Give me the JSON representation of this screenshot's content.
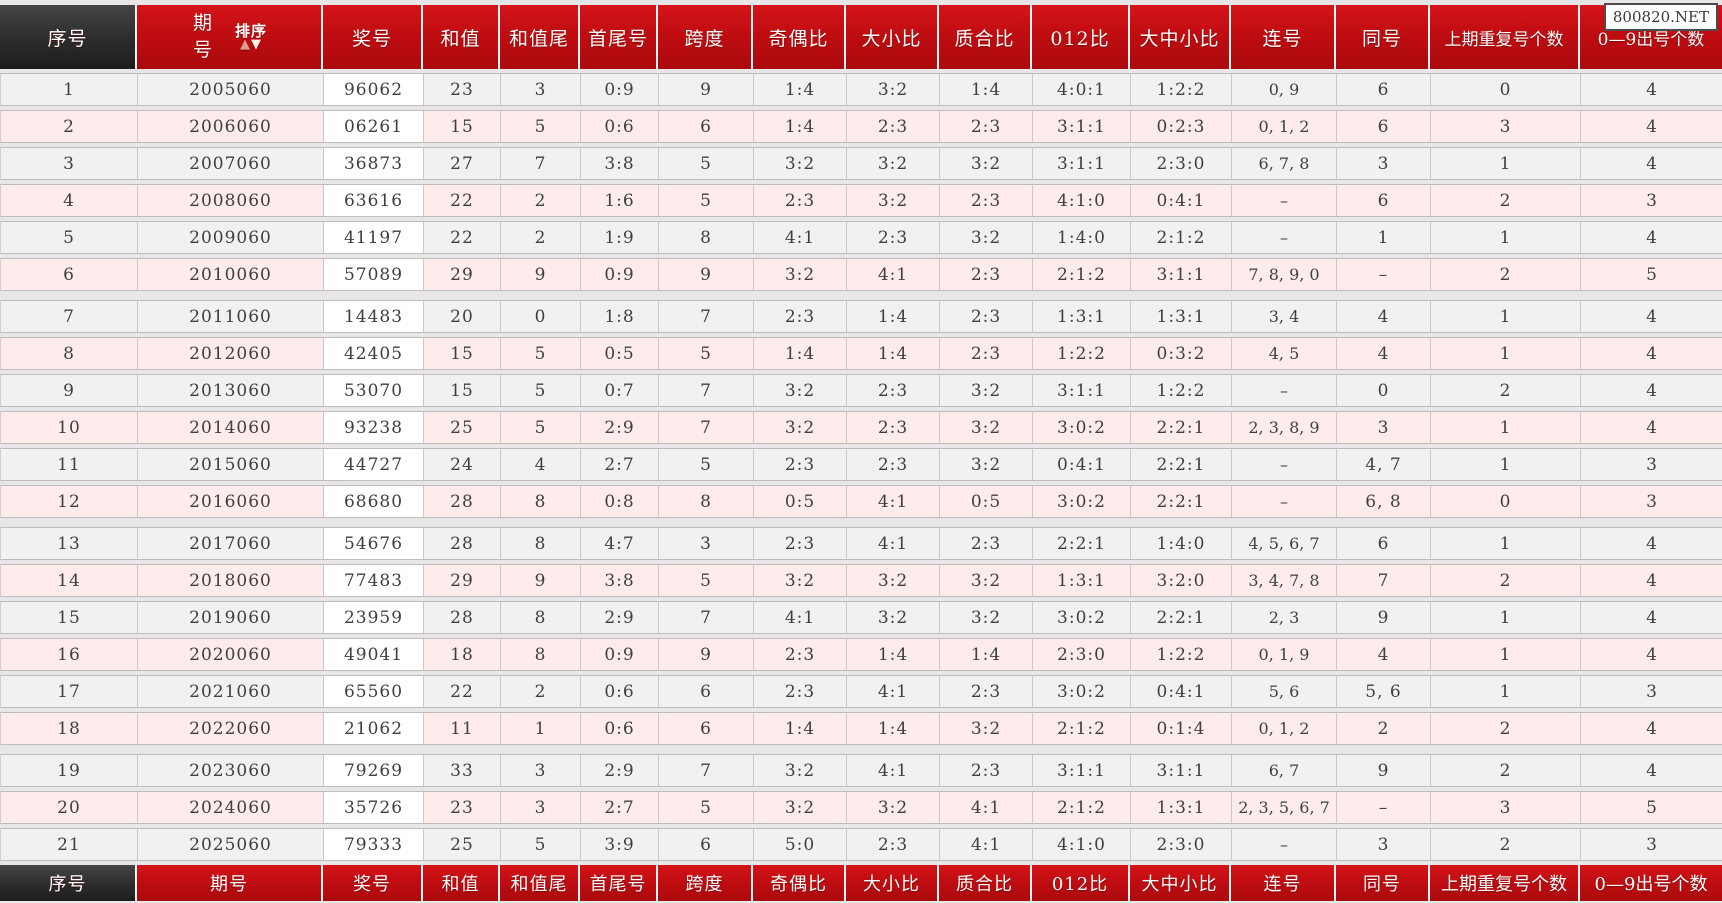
{
  "watermark": {
    "text": "800820.NET"
  },
  "sort": {
    "label": "排序",
    "up_icon": "▲",
    "down_icon": "▼"
  },
  "table": {
    "columns": [
      {
        "key": "serial",
        "label": "序号"
      },
      {
        "key": "period",
        "label": "期号"
      },
      {
        "key": "prize",
        "label": "奖号"
      },
      {
        "key": "sum",
        "label": "和值"
      },
      {
        "key": "sum_tail",
        "label": "和值尾"
      },
      {
        "key": "first_last",
        "label": "首尾号"
      },
      {
        "key": "span",
        "label": "跨度"
      },
      {
        "key": "odd_even",
        "label": "奇偶比"
      },
      {
        "key": "big_small",
        "label": "大小比"
      },
      {
        "key": "prime_composite",
        "label": "质合比"
      },
      {
        "key": "ratio_012",
        "label": "012比"
      },
      {
        "key": "big_mid_small",
        "label": "大中小比"
      },
      {
        "key": "consecutive",
        "label": "连号"
      },
      {
        "key": "same",
        "label": "同号"
      },
      {
        "key": "repeat_prev",
        "label": "上期重复号个数"
      },
      {
        "key": "digit_count",
        "label": "0—9出号个数"
      }
    ],
    "group_size": 6,
    "rows": [
      [
        "1",
        "2005060",
        "96062",
        "23",
        "3",
        "0:9",
        "9",
        "1:4",
        "3:2",
        "1:4",
        "4:0:1",
        "1:2:2",
        "0, 9",
        "6",
        "0",
        "4"
      ],
      [
        "2",
        "2006060",
        "06261",
        "15",
        "5",
        "0:6",
        "6",
        "1:4",
        "2:3",
        "2:3",
        "3:1:1",
        "0:2:3",
        "0, 1, 2",
        "6",
        "3",
        "4"
      ],
      [
        "3",
        "2007060",
        "36873",
        "27",
        "7",
        "3:8",
        "5",
        "3:2",
        "3:2",
        "3:2",
        "3:1:1",
        "2:3:0",
        "6, 7, 8",
        "3",
        "1",
        "4"
      ],
      [
        "4",
        "2008060",
        "63616",
        "22",
        "2",
        "1:6",
        "5",
        "2:3",
        "3:2",
        "2:3",
        "4:1:0",
        "0:4:1",
        "–",
        "6",
        "2",
        "3"
      ],
      [
        "5",
        "2009060",
        "41197",
        "22",
        "2",
        "1:9",
        "8",
        "4:1",
        "2:3",
        "3:2",
        "1:4:0",
        "2:1:2",
        "–",
        "1",
        "1",
        "4"
      ],
      [
        "6",
        "2010060",
        "57089",
        "29",
        "9",
        "0:9",
        "9",
        "3:2",
        "4:1",
        "2:3",
        "2:1:2",
        "3:1:1",
        "7, 8, 9, 0",
        "–",
        "2",
        "5"
      ],
      [
        "7",
        "2011060",
        "14483",
        "20",
        "0",
        "1:8",
        "7",
        "2:3",
        "1:4",
        "2:3",
        "1:3:1",
        "1:3:1",
        "3, 4",
        "4",
        "1",
        "4"
      ],
      [
        "8",
        "2012060",
        "42405",
        "15",
        "5",
        "0:5",
        "5",
        "1:4",
        "1:4",
        "2:3",
        "1:2:2",
        "0:3:2",
        "4, 5",
        "4",
        "1",
        "4"
      ],
      [
        "9",
        "2013060",
        "53070",
        "15",
        "5",
        "0:7",
        "7",
        "3:2",
        "2:3",
        "3:2",
        "3:1:1",
        "1:2:2",
        "–",
        "0",
        "2",
        "4"
      ],
      [
        "10",
        "2014060",
        "93238",
        "25",
        "5",
        "2:9",
        "7",
        "3:2",
        "2:3",
        "3:2",
        "3:0:2",
        "2:2:1",
        "2, 3, 8, 9",
        "3",
        "1",
        "4"
      ],
      [
        "11",
        "2015060",
        "44727",
        "24",
        "4",
        "2:7",
        "5",
        "2:3",
        "2:3",
        "3:2",
        "0:4:1",
        "2:2:1",
        "–",
        "4, 7",
        "1",
        "3"
      ],
      [
        "12",
        "2016060",
        "68680",
        "28",
        "8",
        "0:8",
        "8",
        "0:5",
        "4:1",
        "0:5",
        "3:0:2",
        "2:2:1",
        "–",
        "6, 8",
        "0",
        "3"
      ],
      [
        "13",
        "2017060",
        "54676",
        "28",
        "8",
        "4:7",
        "3",
        "2:3",
        "4:1",
        "2:3",
        "2:2:1",
        "1:4:0",
        "4, 5, 6, 7",
        "6",
        "1",
        "4"
      ],
      [
        "14",
        "2018060",
        "77483",
        "29",
        "9",
        "3:8",
        "5",
        "3:2",
        "3:2",
        "3:2",
        "1:3:1",
        "3:2:0",
        "3, 4, 7, 8",
        "7",
        "2",
        "4"
      ],
      [
        "15",
        "2019060",
        "23959",
        "28",
        "8",
        "2:9",
        "7",
        "4:1",
        "3:2",
        "3:2",
        "3:0:2",
        "2:2:1",
        "2, 3",
        "9",
        "1",
        "4"
      ],
      [
        "16",
        "2020060",
        "49041",
        "18",
        "8",
        "0:9",
        "9",
        "2:3",
        "1:4",
        "1:4",
        "2:3:0",
        "1:2:2",
        "0, 1, 9",
        "4",
        "1",
        "4"
      ],
      [
        "17",
        "2021060",
        "65560",
        "22",
        "2",
        "0:6",
        "6",
        "2:3",
        "4:1",
        "2:3",
        "3:0:2",
        "0:4:1",
        "5, 6",
        "5, 6",
        "1",
        "3"
      ],
      [
        "18",
        "2022060",
        "21062",
        "11",
        "1",
        "0:6",
        "6",
        "1:4",
        "1:4",
        "3:2",
        "2:1:2",
        "0:1:4",
        "0, 1, 2",
        "2",
        "2",
        "4"
      ],
      [
        "19",
        "2023060",
        "79269",
        "33",
        "3",
        "2:9",
        "7",
        "3:2",
        "4:1",
        "2:3",
        "3:1:1",
        "3:1:1",
        "6, 7",
        "9",
        "2",
        "4"
      ],
      [
        "20",
        "2024060",
        "35726",
        "23",
        "3",
        "2:7",
        "5",
        "3:2",
        "3:2",
        "4:1",
        "2:1:2",
        "1:3:1",
        "2, 3, 5, 6, 7",
        "–",
        "3",
        "5"
      ],
      [
        "21",
        "2025060",
        "79333",
        "25",
        "5",
        "3:9",
        "6",
        "5:0",
        "2:3",
        "4:1",
        "4:1:0",
        "2:3:0",
        "–",
        "3",
        "2",
        "3"
      ]
    ]
  },
  "colors": {
    "header_red": "#c00d11",
    "header_dark": "#2c2c2c",
    "row_odd": "#f1f1f1",
    "row_even": "#fdeceb",
    "prize_cell": "#ffffff",
    "sort_arrow_up": "#df9c8d",
    "sort_arrow_down": "#fdf3dd"
  }
}
